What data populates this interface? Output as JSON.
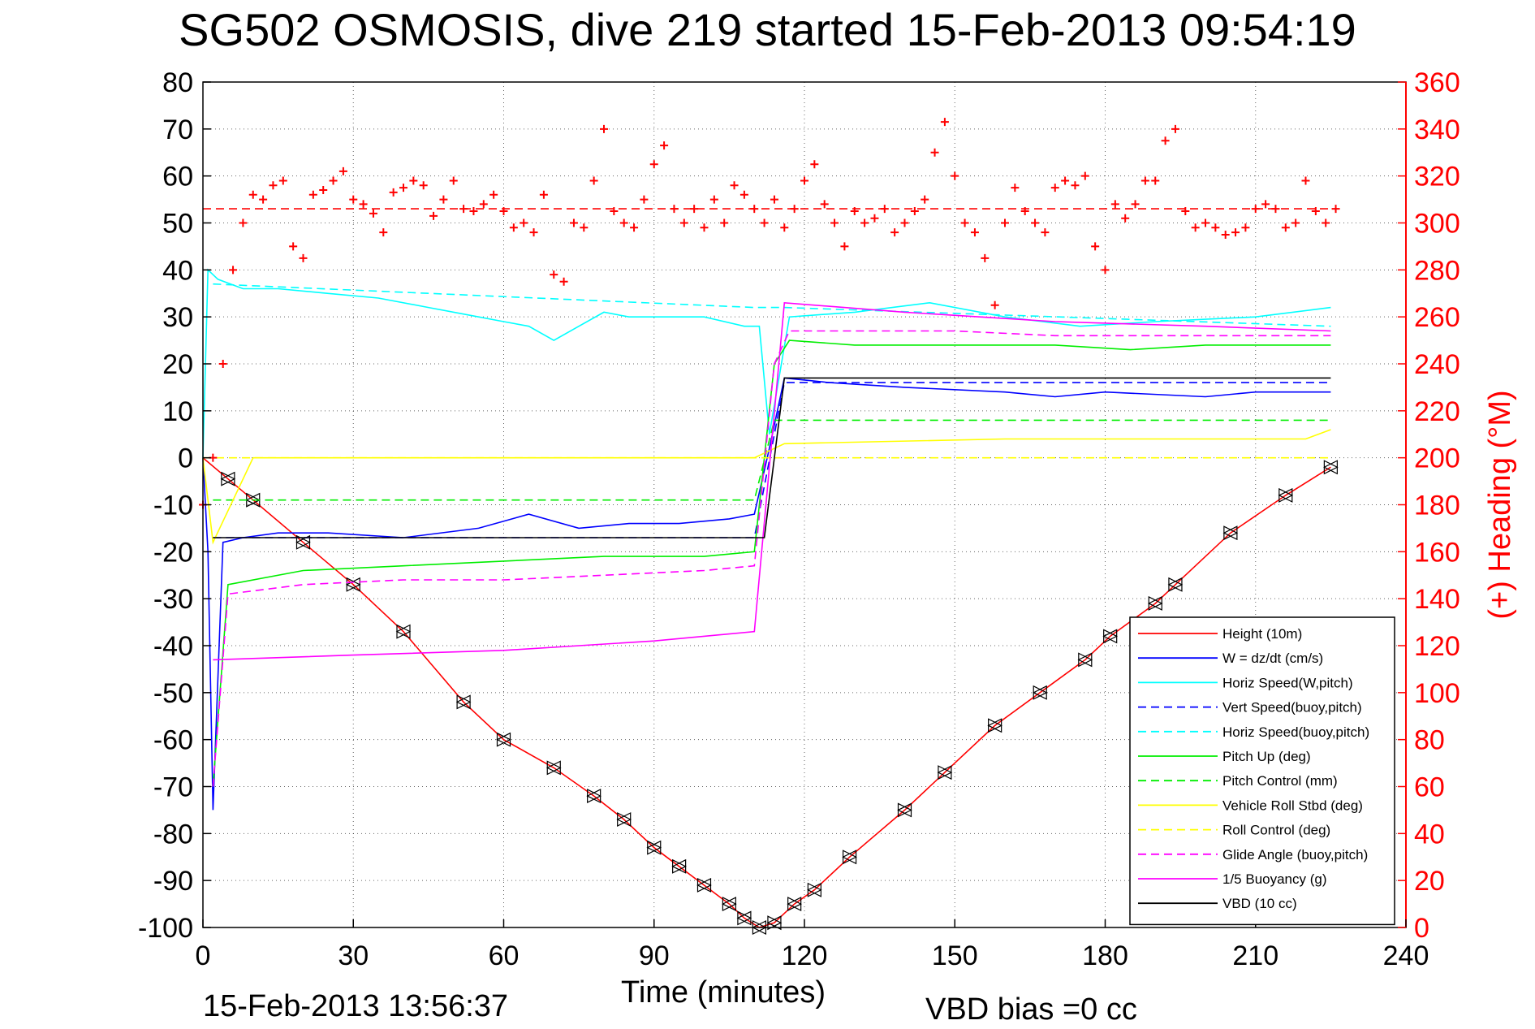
{
  "title": "SG502 OSMOSIS, dive 219 started 15-Feb-2013 09:54:19",
  "footer": {
    "timestamp": "15-Feb-2013 13:56:37",
    "vbd_bias": "VBD bias =0 cc"
  },
  "chart_data": {
    "type": "line",
    "title": "SG502 OSMOSIS, dive 219 started 15-Feb-2013 09:54:19",
    "xlabel": "Time (minutes)",
    "ylabel": "",
    "y2label": "(+) Heading (°M)",
    "xlim": [
      0,
      240
    ],
    "ylim": [
      -100,
      80
    ],
    "y2lim": [
      0,
      360
    ],
    "xticks": [
      "0",
      "30",
      "60",
      "90",
      "120",
      "150",
      "180",
      "210",
      "240"
    ],
    "yticks": [
      "80",
      "70",
      "60",
      "50",
      "40",
      "30",
      "20",
      "10",
      "0",
      "-10",
      "-20",
      "-30",
      "-40",
      "-50",
      "-60",
      "-70",
      "-80",
      "-90",
      "-100"
    ],
    "y2ticks": [
      "360",
      "340",
      "320",
      "300",
      "280",
      "260",
      "240",
      "220",
      "200",
      "180",
      "160",
      "140",
      "120",
      "100",
      "80",
      "60",
      "40",
      "20",
      "0"
    ],
    "grid": true,
    "legend_position": "bottom-right",
    "colors": {
      "axis_right": "#ff0000",
      "height": "#ff0000",
      "w": "#0000ff",
      "horiz_speed": "#00ffff",
      "pitch": "#00ee00",
      "roll": "#ffff00",
      "glide": "#ff00ff",
      "buoyancy": "#ff00ff",
      "vbd": "#000000",
      "heading": "#ff0000"
    },
    "series": [
      {
        "name": "Height (10m)",
        "color": "#ff0000",
        "dash": "solid",
        "x": [
          0,
          5,
          10,
          20,
          30,
          40,
          52,
          60,
          70,
          78,
          84,
          90,
          95,
          100,
          105,
          108,
          111,
          114,
          118,
          122,
          129,
          140,
          148,
          158,
          167,
          176,
          181,
          190,
          194,
          205,
          216,
          225
        ],
        "y": [
          0,
          -4.5,
          -9,
          -18,
          -27,
          -37,
          -52,
          -60,
          -66,
          -72,
          -77,
          -83,
          -87,
          -91,
          -95,
          -98,
          -100,
          -99,
          -95,
          -92,
          -85,
          -75,
          -67,
          -57,
          -50,
          -43,
          -38,
          -31,
          -27,
          -16,
          -8,
          -2
        ]
      },
      {
        "name": "W = dz/dt (cm/s)",
        "color": "#0000ff",
        "dash": "solid",
        "x": [
          0,
          1,
          2,
          4,
          8,
          15,
          25,
          40,
          55,
          65,
          75,
          85,
          95,
          105,
          110,
          113,
          116,
          125,
          140,
          160,
          170,
          180,
          200,
          210,
          225
        ],
        "y": [
          0,
          -20,
          -75,
          -18,
          -17,
          -16,
          -16,
          -17,
          -15,
          -12,
          -15,
          -14,
          -14,
          -13,
          -12,
          2,
          17,
          16,
          15,
          14,
          13,
          14,
          13,
          14,
          14
        ]
      },
      {
        "name": "Horiz Speed(W,pitch)",
        "color": "#00ffff",
        "dash": "solid",
        "x": [
          0,
          1,
          3,
          8,
          15,
          25,
          35,
          45,
          55,
          60,
          65,
          70,
          75,
          80,
          85,
          90,
          100,
          108,
          111,
          113,
          117,
          130,
          145,
          160,
          175,
          190,
          210,
          225
        ],
        "y": [
          0,
          40,
          38,
          36,
          36,
          35,
          34,
          32,
          30,
          29,
          28,
          25,
          28,
          31,
          30,
          30,
          30,
          28,
          28,
          5,
          30,
          31,
          33,
          30,
          28,
          29,
          30,
          32
        ]
      },
      {
        "name": "Vert Speed(buoy,pitch)",
        "color": "#0000ff",
        "dash": "dashed",
        "x": [
          2,
          110,
          116,
          225
        ],
        "y": [
          -17,
          -17,
          16,
          16
        ]
      },
      {
        "name": "Horiz Speed(buoy,pitch)",
        "color": "#00ffff",
        "dash": "dashed",
        "x": [
          2,
          110,
          116,
          225
        ],
        "y": [
          37,
          32,
          32,
          28
        ]
      },
      {
        "name": "Pitch Up (deg)",
        "color": "#00ee00",
        "dash": "solid",
        "x": [
          2,
          5,
          20,
          40,
          60,
          80,
          100,
          110,
          114,
          117,
          130,
          150,
          170,
          185,
          200,
          225
        ],
        "y": [
          -70,
          -27,
          -24,
          -23,
          -22,
          -21,
          -21,
          -20,
          20,
          25,
          24,
          24,
          24,
          23,
          24,
          24
        ]
      },
      {
        "name": "Pitch Control (mm)",
        "color": "#00ee00",
        "dash": "dashed",
        "x": [
          2,
          110,
          114,
          225
        ],
        "y": [
          -9,
          -9,
          8,
          8
        ]
      },
      {
        "name": "Vehicle Roll Stbd (deg)",
        "color": "#ffff00",
        "dash": "solid",
        "x": [
          0,
          2,
          10,
          60,
          110,
          116,
          160,
          200,
          220,
          225
        ],
        "y": [
          0,
          -18,
          0,
          0,
          0,
          3,
          4,
          4,
          4,
          6
        ]
      },
      {
        "name": "Roll Control (deg)",
        "color": "#ffff00",
        "dash": "dashed",
        "x": [
          0,
          110,
          116,
          225
        ],
        "y": [
          0,
          0,
          0,
          0
        ]
      },
      {
        "name": "Glide Angle (buoy,pitch)",
        "color": "#ff00ff",
        "dash": "dashed",
        "x": [
          2,
          5,
          20,
          40,
          60,
          80,
          100,
          110,
          114,
          117,
          130,
          150,
          170,
          190,
          210,
          225
        ],
        "y": [
          -70,
          -29,
          -27,
          -26,
          -26,
          -25,
          -24,
          -23,
          20,
          27,
          27,
          27,
          26,
          26,
          26,
          26
        ]
      },
      {
        "name": "1/5 Buoyancy (g)",
        "color": "#ff00ff",
        "dash": "solid",
        "x": [
          2,
          30,
          60,
          90,
          110,
          116,
          140,
          170,
          200,
          225
        ],
        "y": [
          -43,
          -42,
          -41,
          -39,
          -37,
          33,
          31,
          29,
          28,
          27
        ]
      },
      {
        "name": "VBD (10 cc)",
        "color": "#000000",
        "dash": "solid",
        "x": [
          2,
          112,
          116,
          225
        ],
        "y": [
          -17,
          -17,
          17,
          17
        ]
      },
      {
        "name": "",
        "color": "#ff0000",
        "dash": "dashed",
        "axis": "right",
        "x": [
          0,
          225
        ],
        "y": [
          306,
          306
        ]
      },
      {
        "name": "",
        "color": "#ff0000",
        "dash": "markers-plus",
        "axis": "right",
        "x": [
          0,
          2,
          4,
          6,
          8,
          10,
          12,
          14,
          16,
          18,
          20,
          22,
          24,
          26,
          28,
          30,
          32,
          34,
          36,
          38,
          40,
          42,
          44,
          46,
          48,
          50,
          52,
          54,
          56,
          58,
          60,
          62,
          64,
          66,
          68,
          70,
          72,
          74,
          76,
          78,
          80,
          82,
          84,
          86,
          88,
          90,
          92,
          94,
          96,
          98,
          100,
          102,
          104,
          106,
          108,
          110,
          112,
          114,
          116,
          118,
          120,
          122,
          124,
          126,
          128,
          130,
          132,
          134,
          136,
          138,
          140,
          142,
          144,
          146,
          148,
          150,
          152,
          154,
          156,
          158,
          160,
          162,
          164,
          166,
          168,
          170,
          172,
          174,
          176,
          178,
          180,
          182,
          184,
          186,
          188,
          190,
          192,
          194,
          196,
          198,
          200,
          202,
          204,
          206,
          208,
          210,
          212,
          214,
          216,
          218,
          220,
          222,
          224,
          226
        ],
        "y": [
          180,
          200,
          240,
          280,
          300,
          312,
          310,
          316,
          318,
          290,
          285,
          312,
          314,
          318,
          322,
          310,
          308,
          304,
          296,
          313,
          315,
          318,
          316,
          303,
          310,
          318,
          306,
          305,
          308,
          312,
          305,
          298,
          300,
          296,
          312,
          278,
          275,
          300,
          298,
          318,
          340,
          305,
          300,
          298,
          310,
          325,
          333,
          306,
          300,
          306,
          298,
          310,
          300,
          316,
          312,
          306,
          300,
          310,
          298,
          306,
          318,
          325,
          308,
          300,
          290,
          305,
          300,
          302,
          306,
          296,
          300,
          305,
          310,
          330,
          343,
          320,
          300,
          296,
          285,
          265,
          300,
          315,
          305,
          300,
          296,
          315,
          318,
          316,
          320,
          290,
          280,
          308,
          302,
          308,
          318,
          318,
          335,
          340,
          305,
          298,
          300,
          298,
          295,
          296,
          298,
          306,
          308,
          306,
          298,
          300,
          318,
          305,
          300,
          306
        ]
      }
    ]
  }
}
